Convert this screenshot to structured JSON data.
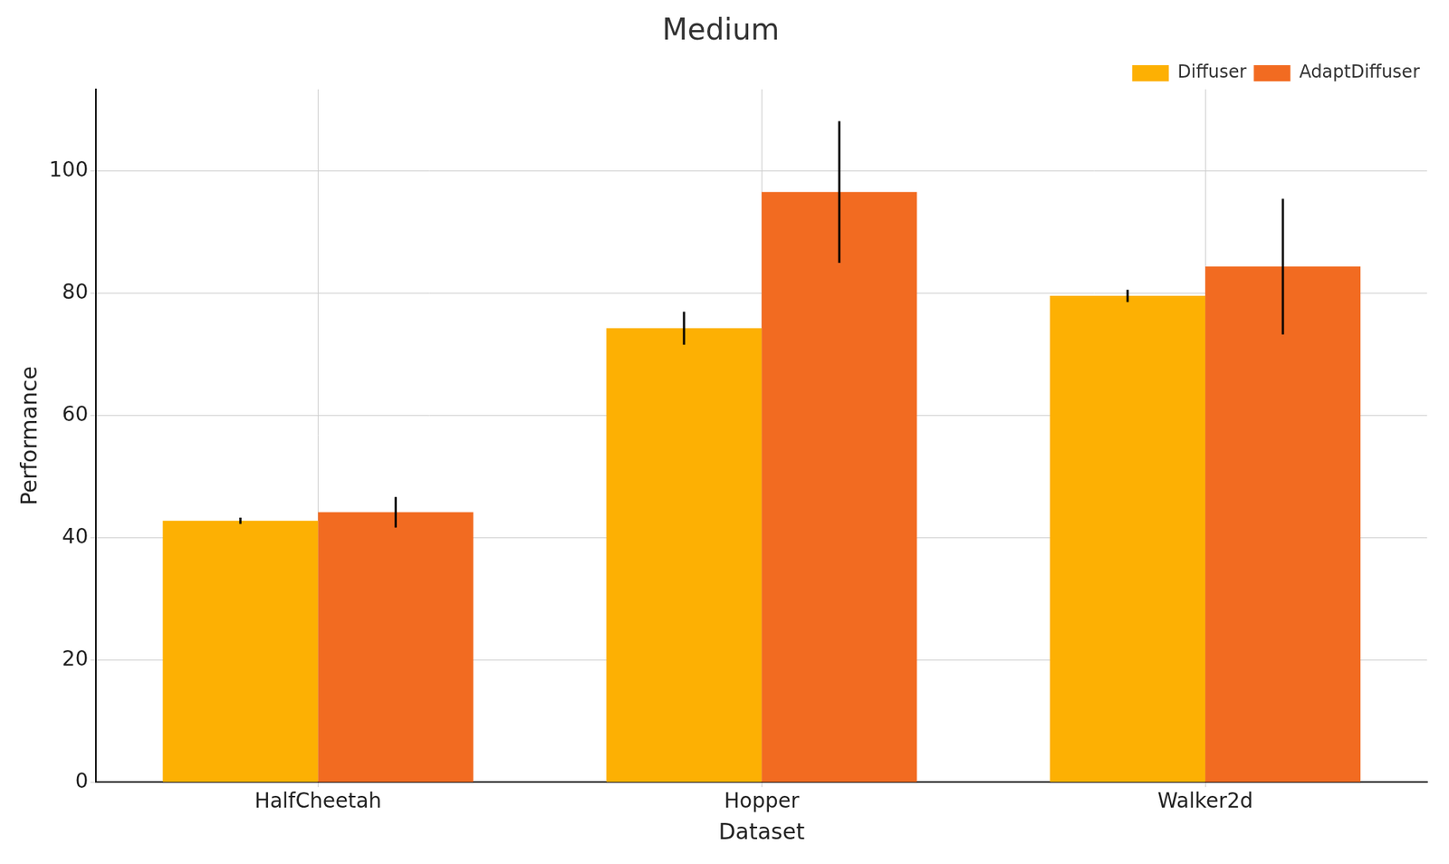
{
  "chart_data": {
    "type": "bar",
    "title": "Medium",
    "x_label": "Dataset",
    "y_label": "Performance",
    "categories": [
      "HalfCheetah",
      "Hopper",
      "Walker2d"
    ],
    "series": [
      {
        "name": "Diffuser",
        "color": "#fdb003",
        "values": [
          42.8,
          74.3,
          79.6
        ],
        "errors": [
          0.5,
          2.7,
          1.0
        ]
      },
      {
        "name": "AdaptDiffuser",
        "color": "#f26b21",
        "values": [
          44.2,
          96.6,
          84.4
        ],
        "errors": [
          2.5,
          11.6,
          11.1
        ]
      }
    ],
    "ylim": [
      0,
      113.4
    ],
    "yticks": [
      0,
      20,
      40,
      60,
      80,
      100
    ],
    "grid": true,
    "legend": "upper right"
  }
}
